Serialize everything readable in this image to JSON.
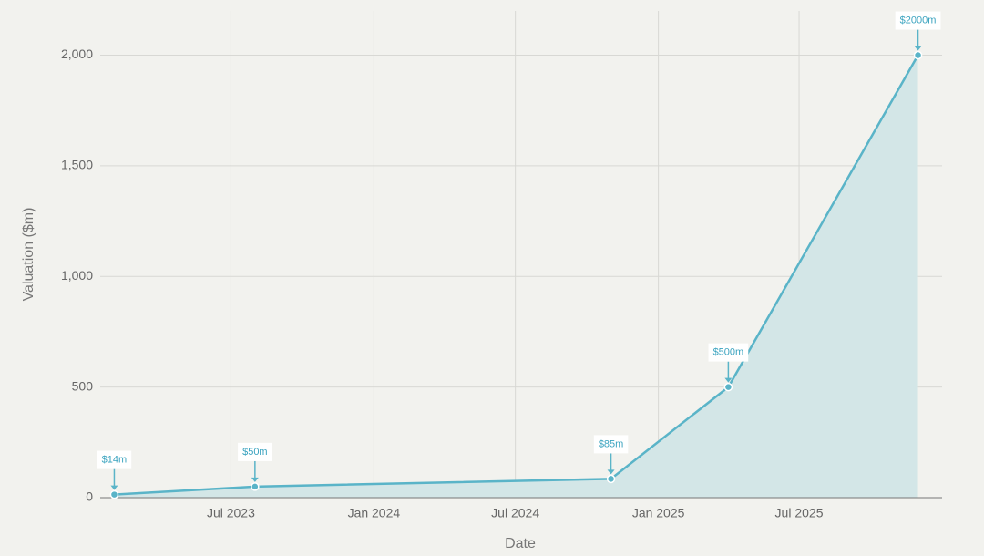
{
  "chart_data": {
    "type": "area",
    "x_label": "Date",
    "y_label": "Valuation ($m)",
    "x": [
      "2023-02",
      "2023-08",
      "2024-11",
      "2025-04",
      "2025-12"
    ],
    "values": [
      14,
      50,
      85,
      500,
      2000
    ],
    "value_labels": [
      "$14m",
      "$50m",
      "$85m",
      "$500m",
      "$2000m"
    ],
    "color": "#5ab4c8",
    "fill": "#d3e6e7",
    "xlim": [
      "2023-01",
      "2026-01"
    ],
    "xticks": [
      {
        "value": "2023-07",
        "label": "Jul 2023"
      },
      {
        "value": "2024-01",
        "label": "Jan 2024"
      },
      {
        "value": "2024-07",
        "label": "Jul 2024"
      },
      {
        "value": "2025-01",
        "label": "Jan 2025"
      },
      {
        "value": "2025-07",
        "label": "Jul 2025"
      }
    ],
    "ylim": [
      0,
      2200
    ],
    "yticks": [
      0,
      500,
      {
        "value": 1000,
        "label": "1,000"
      },
      {
        "value": 1500,
        "label": "1,500"
      },
      {
        "value": 2000,
        "label": "2,000"
      }
    ],
    "grid": true
  }
}
